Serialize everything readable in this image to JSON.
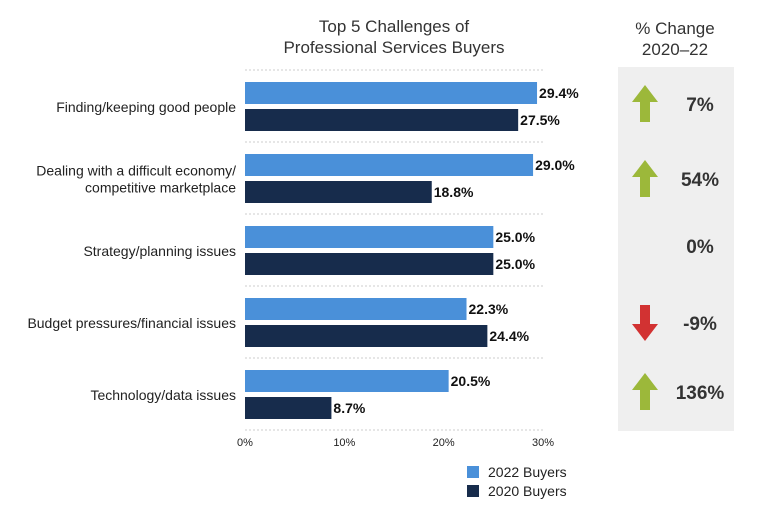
{
  "title_line1": "Top 5 Challenges of",
  "title_line2": "Professional Services Buyers",
  "change_header_line1": "% Change",
  "change_header_line2": "2020–22",
  "colors": {
    "series_2022": "#4a90d9",
    "series_2020": "#172c4c",
    "arrow_up": "#9cb83a",
    "arrow_down": "#d23232",
    "panel_bg": "#efefef",
    "gridline": "#cccccc"
  },
  "chart_data": {
    "type": "bar",
    "orientation": "horizontal",
    "categories": [
      [
        "Finding/keeping good people"
      ],
      [
        "Dealing with a difficult economy/",
        "competitive marketplace"
      ],
      [
        "Strategy/planning issues"
      ],
      [
        "Budget pressures/financial issues"
      ],
      [
        "Technology/data issues"
      ]
    ],
    "series": [
      {
        "name": "2022 Buyers",
        "values": [
          29.4,
          29.0,
          25.0,
          22.3,
          20.5
        ],
        "labels": [
          "29.4%",
          "29.0%",
          "25.0%",
          "22.3%",
          "20.5%"
        ]
      },
      {
        "name": "2020 Buyers",
        "values": [
          27.5,
          18.8,
          25.0,
          24.4,
          8.7
        ],
        "labels": [
          "27.5%",
          "18.8%",
          "25.0%",
          "24.4%",
          "8.7%"
        ]
      }
    ],
    "xlim": [
      0,
      30
    ],
    "xticks": [
      "0%",
      "10%",
      "20%",
      "30%"
    ],
    "grid": "dotted horizontal separators",
    "legend_position": "bottom-right"
  },
  "changes": [
    {
      "value": "7%",
      "direction": "up",
      "icon": "arrow-up-icon"
    },
    {
      "value": "54%",
      "direction": "up",
      "icon": "arrow-up-icon"
    },
    {
      "value": "0%",
      "direction": "none",
      "icon": ""
    },
    {
      "value": "-9%",
      "direction": "down",
      "icon": "arrow-down-icon"
    },
    {
      "value": "136%",
      "direction": "up",
      "icon": "arrow-up-icon"
    }
  ],
  "legend": [
    {
      "label": "2022 Buyers"
    },
    {
      "label": "2020 Buyers"
    }
  ]
}
